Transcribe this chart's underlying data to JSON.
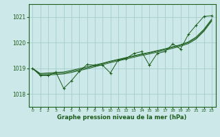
{
  "title": "Graphe pression niveau de la mer (hPa)",
  "background_color": "#cce8e8",
  "grid_color": "#aad0d0",
  "line_color": "#1a5c1a",
  "marker_color": "#1a5c1a",
  "xlim": [
    -0.5,
    23.5
  ],
  "ylim": [
    1017.5,
    1021.5
  ],
  "yticks": [
    1018,
    1019,
    1020,
    1021
  ],
  "xticks": [
    0,
    1,
    2,
    3,
    4,
    5,
    6,
    7,
    8,
    9,
    10,
    11,
    12,
    13,
    14,
    15,
    16,
    17,
    18,
    19,
    20,
    21,
    22,
    23
  ],
  "main_series": [
    1019.0,
    1018.72,
    1018.72,
    1018.85,
    1018.22,
    1018.52,
    1018.88,
    1019.15,
    1019.12,
    1019.12,
    1018.82,
    1019.32,
    1019.38,
    1019.58,
    1019.65,
    1019.12,
    1019.58,
    1019.65,
    1019.95,
    1019.75,
    1020.32,
    1020.68,
    1021.02,
    1021.05
  ],
  "smooth1": [
    1019.0,
    1018.78,
    1018.78,
    1018.8,
    1018.82,
    1018.88,
    1018.95,
    1019.02,
    1019.1,
    1019.18,
    1019.26,
    1019.33,
    1019.4,
    1019.47,
    1019.54,
    1019.6,
    1019.67,
    1019.74,
    1019.82,
    1019.9,
    1020.0,
    1020.18,
    1020.48,
    1020.88
  ],
  "smooth2": [
    1019.0,
    1018.8,
    1018.82,
    1018.84,
    1018.86,
    1018.92,
    1018.99,
    1019.06,
    1019.13,
    1019.2,
    1019.28,
    1019.35,
    1019.42,
    1019.49,
    1019.56,
    1019.62,
    1019.69,
    1019.76,
    1019.84,
    1019.92,
    1020.03,
    1020.22,
    1020.52,
    1020.92
  ],
  "smooth3": [
    1019.0,
    1018.74,
    1018.74,
    1018.76,
    1018.78,
    1018.84,
    1018.91,
    1018.98,
    1019.06,
    1019.14,
    1019.22,
    1019.29,
    1019.36,
    1019.43,
    1019.5,
    1019.56,
    1019.63,
    1019.7,
    1019.78,
    1019.86,
    1019.96,
    1020.14,
    1020.44,
    1020.84
  ]
}
